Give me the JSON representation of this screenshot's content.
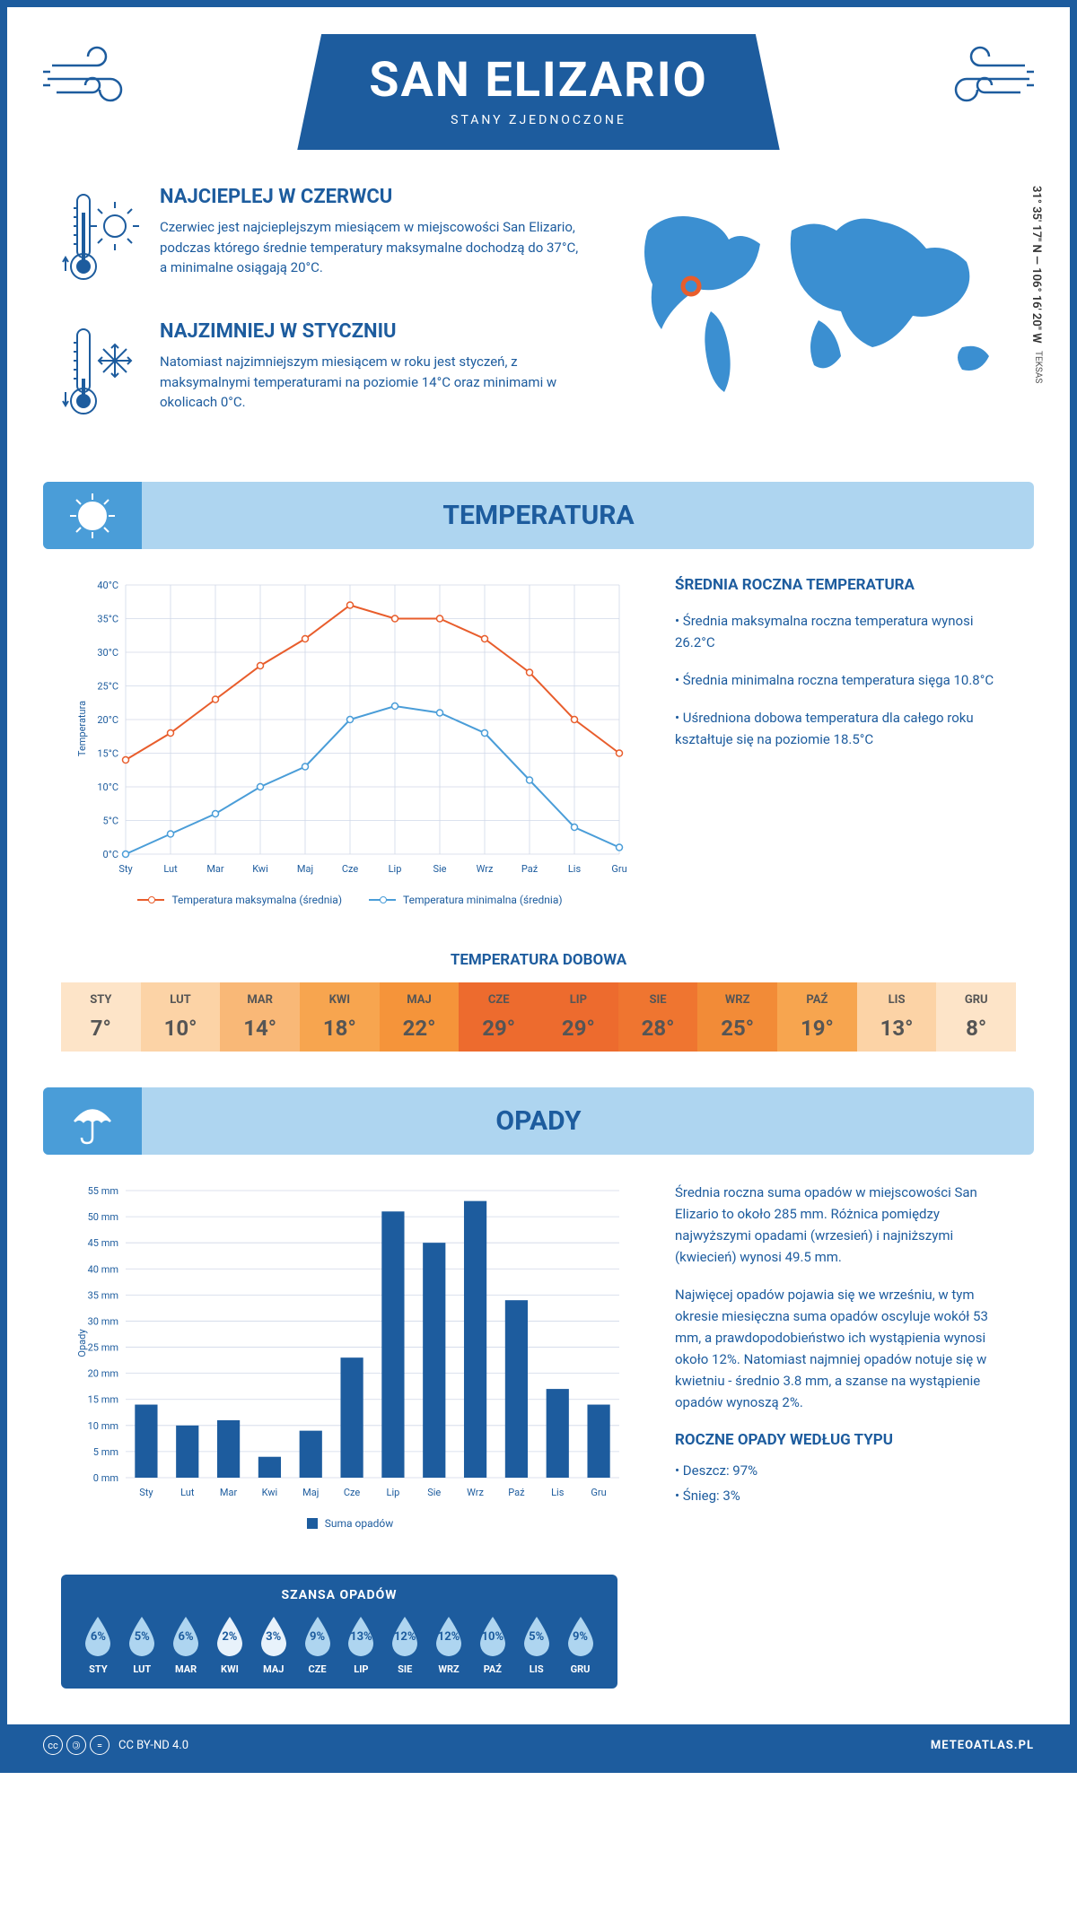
{
  "header": {
    "title": "SAN ELIZARIO",
    "subtitle": "STANY ZJEDNOCZONE"
  },
  "intro": {
    "hot": {
      "title": "NAJCIEPLEJ W CZERWCU",
      "text": "Czerwiec jest najcieplejszym miesiącem w miejscowości San Elizario, podczas którego średnie temperatury maksymalne dochodzą do 37°C, a minimalne osiągają 20°C."
    },
    "cold": {
      "title": "NAJZIMNIEJ W STYCZNIU",
      "text": "Natomiast najzimniejszym miesiącem w roku jest styczeń, z maksymalnymi temperaturami na poziomie 14°C oraz minimami w okolicach 0°C."
    },
    "coords": "31° 35' 17\" N — 106° 16' 20\" W",
    "state": "TEKSAS"
  },
  "sections": {
    "temperature": "TEMPERATURA",
    "precipitation": "OPADY"
  },
  "months": [
    "Sty",
    "Lut",
    "Mar",
    "Kwi",
    "Maj",
    "Cze",
    "Lip",
    "Sie",
    "Wrz",
    "Paź",
    "Lis",
    "Gru"
  ],
  "months_upper": [
    "STY",
    "LUT",
    "MAR",
    "KWI",
    "MAJ",
    "CZE",
    "LIP",
    "SIE",
    "WRZ",
    "PAŹ",
    "LIS",
    "GRU"
  ],
  "temp_chart": {
    "ylabel": "Temperatura",
    "ymin": 0,
    "ymax": 40,
    "ystep": 5,
    "max_series": [
      14,
      18,
      23,
      28,
      32,
      37,
      35,
      35,
      32,
      27,
      20,
      15
    ],
    "min_series": [
      0,
      3,
      6,
      10,
      13,
      20,
      22,
      21,
      18,
      11,
      4,
      1
    ],
    "max_color": "#e85d2c",
    "min_color": "#4a9dd8",
    "grid_color": "#d0d8e8",
    "legend_max": "Temperatura maksymalna (średnia)",
    "legend_min": "Temperatura minimalna (średnia)"
  },
  "temp_info": {
    "title": "ŚREDNIA ROCZNA TEMPERATURA",
    "bullets": [
      "• Średnia maksymalna roczna temperatura wynosi 26.2°C",
      "• Średnia minimalna roczna temperatura sięga 10.8°C",
      "• Uśredniona dobowa temperatura dla całego roku kształtuje się na poziomie 18.5°C"
    ]
  },
  "daily": {
    "title": "TEMPERATURA DOBOWA",
    "values": [
      "7°",
      "10°",
      "14°",
      "18°",
      "22°",
      "29°",
      "29°",
      "28°",
      "25°",
      "19°",
      "13°",
      "8°"
    ],
    "colors": [
      "#fde4c8",
      "#fcd3a6",
      "#f9b877",
      "#f7a54f",
      "#f5943a",
      "#ed6b2e",
      "#ed6b2e",
      "#ef7530",
      "#f28b37",
      "#f7a54f",
      "#fcd3a6",
      "#fde4c8"
    ]
  },
  "precip_chart": {
    "ylabel": "Opady",
    "ymax": 55,
    "ystep": 5,
    "values": [
      14,
      10,
      11,
      4,
      9,
      23,
      51,
      45,
      53,
      34,
      17,
      14
    ],
    "bar_color": "#1d5c9e",
    "grid_color": "#d0d8e8",
    "legend": "Suma opadów"
  },
  "precip_info": {
    "p1": "Średnia roczna suma opadów w miejscowości San Elizario to około 285 mm. Różnica pomiędzy najwyższymi opadami (wrzesień) i najniższymi (kwiecień) wynosi 49.5 mm.",
    "p2": "Najwięcej opadów pojawia się we wrześniu, w tym okresie miesięczna suma opadów oscyluje wokół 53 mm, a prawdopodobieństwo ich wystąpienia wynosi około 12%. Natomiast najmniej opadów notuje się w kwietniu - średnio 3.8 mm, a szanse na wystąpienie opadów wynoszą 2%.",
    "type_title": "ROCZNE OPADY WEDŁUG TYPU",
    "type_bullets": [
      "• Deszcz: 97%",
      "• Śnieg: 3%"
    ]
  },
  "chance": {
    "title": "SZANSA OPADÓW",
    "values": [
      "6%",
      "5%",
      "6%",
      "2%",
      "3%",
      "9%",
      "13%",
      "12%",
      "12%",
      "10%",
      "5%",
      "9%"
    ],
    "fill": [
      0.45,
      0.38,
      0.45,
      0.15,
      0.22,
      0.68,
      1.0,
      0.92,
      0.92,
      0.77,
      0.38,
      0.68
    ]
  },
  "footer": {
    "license": "CC BY-ND 4.0",
    "site": "METEOATLAS.PL"
  },
  "colors": {
    "primary": "#1d5c9e",
    "light": "#aed5f0",
    "accent": "#4a9dd8"
  }
}
